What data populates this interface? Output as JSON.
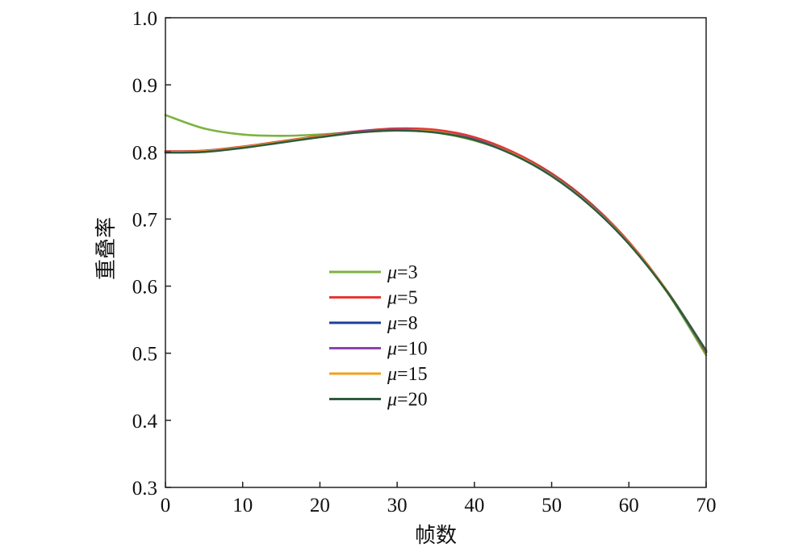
{
  "chart_data": {
    "type": "line",
    "title": "",
    "xlabel": "帧数",
    "ylabel": "重叠率",
    "xlim": [
      0,
      70
    ],
    "ylim": [
      0.3,
      1.0
    ],
    "xticks": [
      0,
      10,
      20,
      30,
      40,
      50,
      60,
      70
    ],
    "xtick_labels": [
      "0",
      "10",
      "20",
      "30",
      "40",
      "50",
      "60",
      "70"
    ],
    "yticks": [
      0.3,
      0.4,
      0.5,
      0.6,
      0.7,
      0.8,
      0.9,
      1.0
    ],
    "ytick_labels": [
      "0.3",
      "0.4",
      "0.5",
      "0.6",
      "0.7",
      "0.8",
      "0.9",
      "1.0"
    ],
    "grid": false,
    "legend_position": "center",
    "x": [
      0,
      5,
      10,
      15,
      20,
      25,
      30,
      35,
      40,
      45,
      50,
      55,
      60,
      65,
      70
    ],
    "series": [
      {
        "name": "μ=3",
        "legend_symbol": "μ",
        "legend_value": "=3",
        "color": "#7cb342",
        "values": [
          0.855,
          0.835,
          0.826,
          0.824,
          0.826,
          0.83,
          0.832,
          0.829,
          0.817,
          0.797,
          0.767,
          0.722,
          0.663,
          0.59,
          0.497
        ]
      },
      {
        "name": "μ=5",
        "legend_symbol": "μ",
        "legend_value": "=5",
        "color": "#e53935",
        "values": [
          0.801,
          0.802,
          0.808,
          0.816,
          0.824,
          0.831,
          0.835,
          0.833,
          0.822,
          0.8,
          0.768,
          0.724,
          0.666,
          0.592,
          0.501
        ]
      },
      {
        "name": "μ=8",
        "legend_symbol": "μ",
        "legend_value": "=8",
        "color": "#1e3f9a",
        "values": [
          0.8,
          0.801,
          0.807,
          0.815,
          0.823,
          0.83,
          0.833,
          0.83,
          0.819,
          0.797,
          0.766,
          0.722,
          0.664,
          0.591,
          0.502
        ]
      },
      {
        "name": "μ=10",
        "legend_symbol": "μ",
        "legend_value": "=10",
        "color": "#8e44ad",
        "values": [
          0.8,
          0.801,
          0.807,
          0.815,
          0.823,
          0.83,
          0.833,
          0.83,
          0.819,
          0.797,
          0.765,
          0.721,
          0.664,
          0.592,
          0.503
        ]
      },
      {
        "name": "μ=15",
        "legend_symbol": "μ",
        "legend_value": "=15",
        "color": "#f0a020",
        "values": [
          0.8,
          0.801,
          0.807,
          0.815,
          0.823,
          0.829,
          0.832,
          0.83,
          0.818,
          0.797,
          0.765,
          0.721,
          0.664,
          0.592,
          0.503
        ]
      },
      {
        "name": "μ=20",
        "legend_symbol": "μ",
        "legend_value": "=20",
        "color": "#2e5b3e",
        "values": [
          0.799,
          0.8,
          0.806,
          0.814,
          0.822,
          0.829,
          0.832,
          0.829,
          0.818,
          0.796,
          0.764,
          0.72,
          0.663,
          0.591,
          0.504
        ]
      }
    ]
  }
}
